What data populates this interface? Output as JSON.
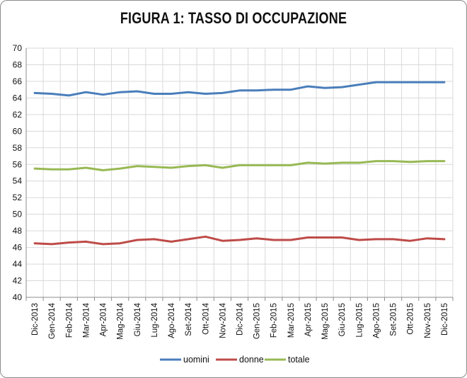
{
  "chart_data": {
    "type": "line",
    "title": "FIGURA 1: TASSO DI OCCUPAZIONE",
    "xlabel": "",
    "ylabel": "",
    "ylim": [
      40,
      70
    ],
    "yticks": [
      40,
      42,
      44,
      46,
      48,
      50,
      52,
      54,
      56,
      58,
      60,
      62,
      64,
      66,
      68,
      70
    ],
    "grid": true,
    "legend_position": "bottom",
    "categories": [
      "Dic-2013",
      "Gen-2014",
      "Feb-2014",
      "Mar-2014",
      "Apr-2014",
      "Mag-2014",
      "Giu-2014",
      "Lug-2014",
      "Ago-2014",
      "Set-2014",
      "Ott-2014",
      "Nov-2014",
      "Dic-2014",
      "Gen-2015",
      "Feb-2015",
      "Mar-2015",
      "Apr-2015",
      "Mag-2015",
      "Giu-2015",
      "Lug-2015",
      "Ago-2015",
      "Set-2015",
      "Ott-2015",
      "Nov-2015",
      "Dic-2015"
    ],
    "series": [
      {
        "name": "uomini",
        "color": "#4a7ebb",
        "values": [
          64.6,
          64.5,
          64.3,
          64.7,
          64.4,
          64.7,
          64.8,
          64.5,
          64.5,
          64.7,
          64.5,
          64.6,
          64.9,
          64.9,
          65.0,
          65.0,
          65.4,
          65.2,
          65.3,
          65.6,
          65.9,
          65.9,
          65.9,
          65.9,
          65.9
        ]
      },
      {
        "name": "donne",
        "color": "#be4b48",
        "values": [
          46.5,
          46.4,
          46.6,
          46.7,
          46.4,
          46.5,
          46.9,
          47.0,
          46.7,
          47.0,
          47.3,
          46.8,
          46.9,
          47.1,
          46.9,
          46.9,
          47.2,
          47.2,
          47.2,
          46.9,
          47.0,
          47.0,
          46.8,
          47.1,
          47.0
        ]
      },
      {
        "name": "totale",
        "color": "#98b954",
        "values": [
          55.5,
          55.4,
          55.4,
          55.6,
          55.3,
          55.5,
          55.8,
          55.7,
          55.6,
          55.8,
          55.9,
          55.6,
          55.9,
          55.9,
          55.9,
          55.9,
          56.2,
          56.1,
          56.2,
          56.2,
          56.4,
          56.4,
          56.3,
          56.4,
          56.4
        ]
      }
    ]
  }
}
